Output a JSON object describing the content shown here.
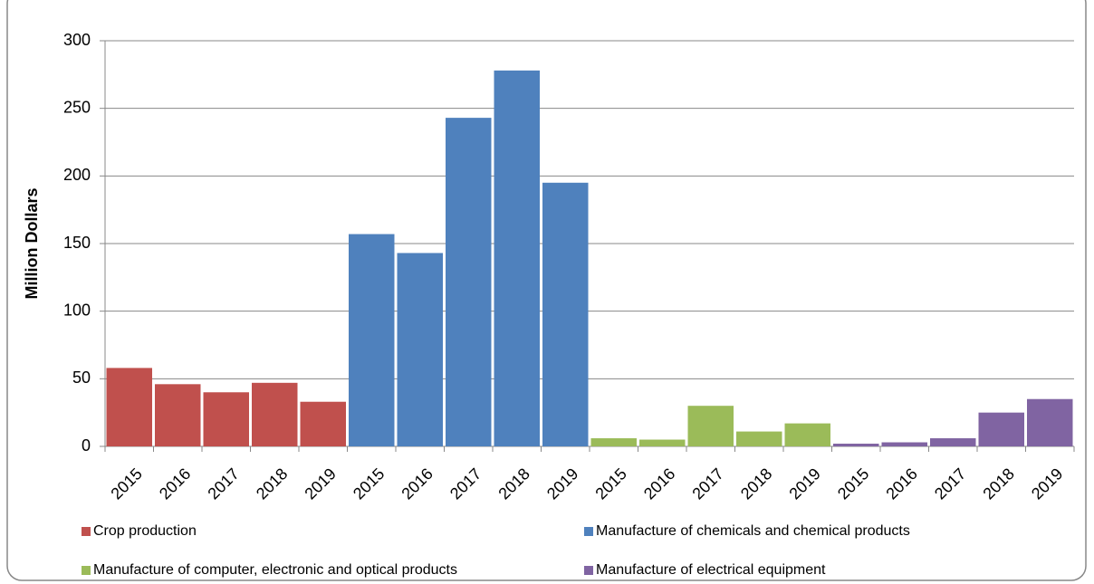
{
  "chart_data": {
    "type": "bar",
    "y_label": "Million Dollars",
    "categories": [
      "2015",
      "2016",
      "2017",
      "2018",
      "2019",
      "2015",
      "2016",
      "2017",
      "2018",
      "2019",
      "2015",
      "2016",
      "2017",
      "2018",
      "2019",
      "2015",
      "2016",
      "2017",
      "2018",
      "2019"
    ],
    "series": [
      {
        "name": "Crop production",
        "color": "#c0504d",
        "values": [
          58,
          46,
          40,
          47,
          33,
          null,
          null,
          null,
          null,
          null,
          null,
          null,
          null,
          null,
          null,
          null,
          null,
          null,
          null,
          null
        ]
      },
      {
        "name": "Manufacture of chemicals and chemical products",
        "color": "#4f81bd",
        "values": [
          null,
          null,
          null,
          null,
          null,
          157,
          143,
          243,
          278,
          195,
          null,
          null,
          null,
          null,
          null,
          null,
          null,
          null,
          null,
          null
        ]
      },
      {
        "name": "Manufacture of computer, electronic and optical products",
        "color": "#9bbb59",
        "values": [
          null,
          null,
          null,
          null,
          null,
          null,
          null,
          null,
          null,
          null,
          6,
          5,
          30,
          11,
          17,
          null,
          null,
          null,
          null,
          null
        ]
      },
      {
        "name": "Manufacture of electrical equipment",
        "color": "#8064a2",
        "values": [
          null,
          null,
          null,
          null,
          null,
          null,
          null,
          null,
          null,
          null,
          null,
          null,
          null,
          null,
          null,
          2,
          3,
          6,
          25,
          35
        ]
      }
    ],
    "ylim": [
      0,
      300
    ],
    "yticks": [
      0,
      50,
      100,
      150,
      200,
      250,
      300
    ],
    "grid": true,
    "legend": "bottom"
  }
}
